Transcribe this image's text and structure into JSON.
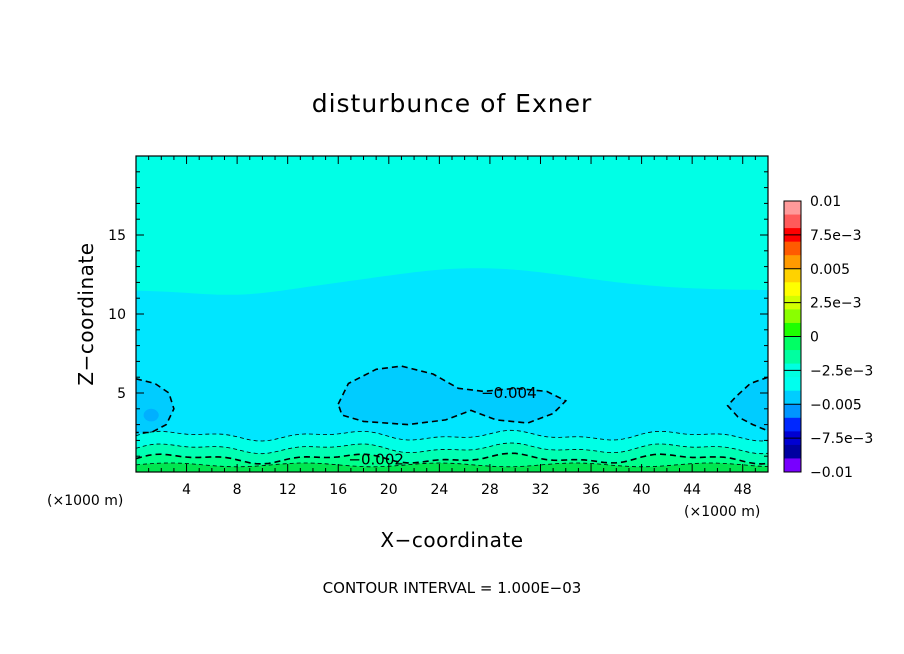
{
  "chart_data": {
    "type": "contour",
    "title": "disturbunce of Exner",
    "xlabel": "X−coordinate",
    "ylabel": "Z−coordinate",
    "x_unit": "(×1000 m)",
    "x_unit_right": "(×1000 m)",
    "xlim": [
      0,
      50
    ],
    "ylim": [
      0,
      20
    ],
    "x_ticks": [
      4,
      8,
      12,
      16,
      20,
      24,
      28,
      32,
      36,
      40,
      44,
      48
    ],
    "x_tick_labels": [
      "4",
      "8",
      "12",
      "16",
      "20",
      "24",
      "28",
      "32",
      "36",
      "40",
      "44",
      "48"
    ],
    "y_ticks": [
      5,
      10,
      15
    ],
    "y_tick_labels": [
      "5",
      "10",
      "15"
    ],
    "contour_interval_text": "CONTOUR INTERVAL = 1.000E−03",
    "contour_labels": [
      {
        "text": "−0.004",
        "x": 29.5,
        "z": 5.0
      },
      {
        "text": "−0.002",
        "x": 19.0,
        "z": 0.8
      }
    ],
    "colorbar": {
      "levels": [
        -0.01,
        -0.0075,
        -0.005,
        -0.0025,
        0,
        0.0025,
        0.005,
        0.0075,
        0.01
      ],
      "labels": [
        "0.01",
        "7.5e−3",
        "0.005",
        "2.5e−3",
        "0",
        "−2.5e−3",
        "−0.005",
        "−7.5e−3",
        "−0.01"
      ],
      "colors_top_to_bottom": [
        "#ff9a9a",
        "#ff5a5a",
        "#ff0000",
        "#ff5a00",
        "#ff9a00",
        "#ffd200",
        "#ffff00",
        "#d2ff00",
        "#8aff00",
        "#1eff00",
        "#00ff64",
        "#00ffa0",
        "#00ffe0",
        "#00ffee",
        "#00cdff",
        "#0096ff",
        "#0028ff",
        "#0000d2",
        "#0000a0",
        "#7800ff"
      ]
    },
    "regions": {
      "upper_color": "#00ffe6",
      "middle_color": "#00e6ff",
      "lower_color": "#00ccff",
      "surface_color": "#00ff8c",
      "ground_color": "#00e650"
    }
  }
}
